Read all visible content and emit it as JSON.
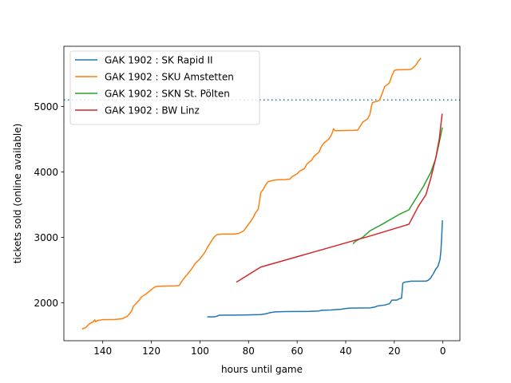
{
  "chart_data": {
    "type": "line",
    "xlabel": "hours until game",
    "ylabel": "tickets sold (online available)",
    "xlim": [
      156,
      -7
    ],
    "ylim": [
      1420,
      5920
    ],
    "x_reversed": true,
    "x_ticks": [
      140,
      120,
      100,
      80,
      60,
      40,
      20,
      0
    ],
    "x_tick_labels": [
      "140",
      "120",
      "100",
      "80",
      "60",
      "40",
      "20",
      "0"
    ],
    "y_ticks": [
      2000,
      3000,
      4000,
      5000
    ],
    "y_tick_labels": [
      "2000",
      "3000",
      "4000",
      "5000"
    ],
    "grid": false,
    "legend_position": "upper-left",
    "capacity_line": {
      "y": 5100,
      "style": "dotted",
      "color": "#1f77b4"
    },
    "series": [
      {
        "name": "GAK 1902 : SK Rapid II",
        "color": "#1f77b4",
        "points": [
          [
            97,
            1785
          ],
          [
            94,
            1785
          ],
          [
            93,
            1795
          ],
          [
            92,
            1810
          ],
          [
            85,
            1812
          ],
          [
            80,
            1815
          ],
          [
            75,
            1820
          ],
          [
            73,
            1830
          ],
          [
            71,
            1850
          ],
          [
            69,
            1860
          ],
          [
            65,
            1865
          ],
          [
            60,
            1866
          ],
          [
            55,
            1868
          ],
          [
            51,
            1875
          ],
          [
            50,
            1885
          ],
          [
            46,
            1890
          ],
          [
            44,
            1895
          ],
          [
            42,
            1900
          ],
          [
            40,
            1912
          ],
          [
            38,
            1918
          ],
          [
            34,
            1920
          ],
          [
            30,
            1922
          ],
          [
            28,
            1935
          ],
          [
            27,
            1950
          ],
          [
            24,
            1965
          ],
          [
            22,
            1985
          ],
          [
            21,
            2040
          ],
          [
            19,
            2040
          ],
          [
            18,
            2060
          ],
          [
            17,
            2070
          ],
          [
            16.5,
            2300
          ],
          [
            16,
            2310
          ],
          [
            15,
            2320
          ],
          [
            13,
            2330
          ],
          [
            9,
            2330
          ],
          [
            7,
            2330
          ],
          [
            6,
            2345
          ],
          [
            5,
            2380
          ],
          [
            4,
            2440
          ],
          [
            3,
            2510
          ],
          [
            2,
            2560
          ],
          [
            1.2,
            2660
          ],
          [
            0.8,
            2800
          ],
          [
            0.5,
            3000
          ],
          [
            0.2,
            3260
          ]
        ]
      },
      {
        "name": "GAK 1902 : SKU Amstetten",
        "color": "#ff7f0e",
        "points": [
          [
            148.5,
            1600
          ],
          [
            147,
            1620
          ],
          [
            146,
            1660
          ],
          [
            145,
            1690
          ],
          [
            144,
            1705
          ],
          [
            143.3,
            1740
          ],
          [
            143,
            1710
          ],
          [
            142,
            1730
          ],
          [
            140,
            1742
          ],
          [
            135,
            1745
          ],
          [
            132,
            1755
          ],
          [
            131,
            1775
          ],
          [
            130,
            1790
          ],
          [
            129,
            1830
          ],
          [
            128,
            1880
          ],
          [
            127.5,
            1940
          ],
          [
            126.5,
            1980
          ],
          [
            125,
            2040
          ],
          [
            124,
            2090
          ],
          [
            122,
            2140
          ],
          [
            121,
            2170
          ],
          [
            120,
            2200
          ],
          [
            119,
            2230
          ],
          [
            118,
            2250
          ],
          [
            115,
            2255
          ],
          [
            112,
            2257
          ],
          [
            110,
            2258
          ],
          [
            108.5,
            2265
          ],
          [
            108,
            2300
          ],
          [
            107,
            2350
          ],
          [
            106,
            2400
          ],
          [
            105,
            2440
          ],
          [
            104,
            2490
          ],
          [
            103,
            2540
          ],
          [
            102,
            2600
          ],
          [
            100,
            2670
          ],
          [
            99,
            2720
          ],
          [
            98,
            2770
          ],
          [
            97,
            2840
          ],
          [
            96,
            2900
          ],
          [
            95,
            2960
          ],
          [
            94,
            3010
          ],
          [
            93,
            3040
          ],
          [
            91,
            3050
          ],
          [
            86,
            3050
          ],
          [
            84,
            3060
          ],
          [
            82,
            3100
          ],
          [
            81,
            3150
          ],
          [
            80,
            3200
          ],
          [
            79,
            3250
          ],
          [
            78,
            3310
          ],
          [
            77,
            3380
          ],
          [
            76,
            3430
          ],
          [
            75.5,
            3550
          ],
          [
            75,
            3680
          ],
          [
            74,
            3730
          ],
          [
            73,
            3800
          ],
          [
            72,
            3850
          ],
          [
            70,
            3870
          ],
          [
            68,
            3880
          ],
          [
            65,
            3883
          ],
          [
            63,
            3890
          ],
          [
            62,
            3930
          ],
          [
            60,
            3970
          ],
          [
            59,
            4010
          ],
          [
            57,
            4050
          ],
          [
            56,
            4120
          ],
          [
            54,
            4180
          ],
          [
            53,
            4240
          ],
          [
            51,
            4300
          ],
          [
            50,
            4390
          ],
          [
            49,
            4440
          ],
          [
            47,
            4500
          ],
          [
            46,
            4560
          ],
          [
            45.5,
            4600
          ],
          [
            45,
            4660
          ],
          [
            44.5,
            4630
          ],
          [
            43,
            4630
          ],
          [
            37,
            4635
          ],
          [
            35,
            4640
          ],
          [
            34,
            4700
          ],
          [
            33,
            4760
          ],
          [
            31,
            4810
          ],
          [
            30,
            4880
          ],
          [
            29.5,
            4990
          ],
          [
            29,
            5060
          ],
          [
            27,
            5080
          ],
          [
            26,
            5100
          ],
          [
            25,
            5200
          ],
          [
            24,
            5300
          ],
          [
            22,
            5360
          ],
          [
            21,
            5470
          ],
          [
            20,
            5550
          ],
          [
            19,
            5560
          ],
          [
            14,
            5565
          ],
          [
            13,
            5570
          ],
          [
            12,
            5600
          ],
          [
            11,
            5640
          ],
          [
            10,
            5700
          ],
          [
            9,
            5740
          ]
        ]
      },
      {
        "name": "GAK 1902 : SKN St. Pölten",
        "color": "#2ca02c",
        "points": [
          [
            37,
            2900
          ],
          [
            36,
            2940
          ],
          [
            33,
            3000
          ],
          [
            30,
            3100
          ],
          [
            25,
            3200
          ],
          [
            18,
            3350
          ],
          [
            14,
            3420
          ],
          [
            11,
            3600
          ],
          [
            8,
            3780
          ],
          [
            5,
            3990
          ],
          [
            3,
            4200
          ],
          [
            1.5,
            4450
          ],
          [
            0.2,
            4680
          ]
        ]
      },
      {
        "name": "GAK 1902 : BW Linz",
        "color": "#d62728",
        "points": [
          [
            85,
            2315
          ],
          [
            75,
            2545
          ],
          [
            40,
            2915
          ],
          [
            30,
            3020
          ],
          [
            14,
            3200
          ],
          [
            10,
            3480
          ],
          [
            7,
            3650
          ],
          [
            5,
            3900
          ],
          [
            3,
            4200
          ],
          [
            1.5,
            4500
          ],
          [
            0.3,
            4890
          ]
        ]
      }
    ]
  }
}
